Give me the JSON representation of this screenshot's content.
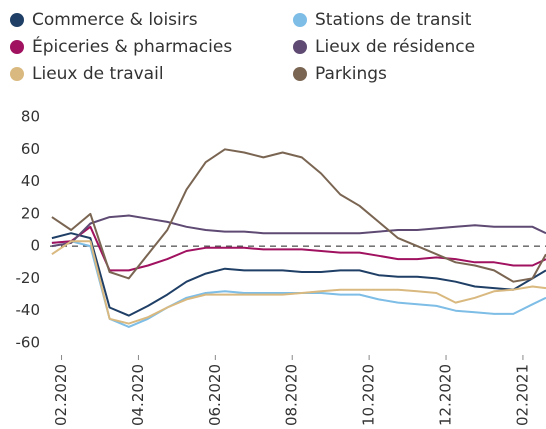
{
  "chart_data": {
    "type": "line",
    "x": [
      1.75,
      2.25,
      2.75,
      3.25,
      3.75,
      4.25,
      4.75,
      5.25,
      5.75,
      6.25,
      6.75,
      7.25,
      7.75,
      8.25,
      8.75,
      9.25,
      9.75,
      10.25,
      10.75,
      11.25,
      11.75,
      12.25,
      12.75,
      13.25,
      13.75,
      14.25,
      14.6
    ],
    "series": [
      {
        "name": "Commerce & loisirs",
        "color": "#1f3f66",
        "values": [
          5,
          8,
          5,
          -38,
          -43,
          -37,
          -30,
          -22,
          -17,
          -14,
          -15,
          -15,
          -15,
          -16,
          -16,
          -15,
          -15,
          -18,
          -19,
          -19,
          -20,
          -22,
          -25,
          -26,
          -27,
          -20,
          -15
        ]
      },
      {
        "name": "Stations de transit",
        "color": "#7dbde6",
        "values": [
          2,
          3,
          0,
          -45,
          -50,
          -45,
          -38,
          -32,
          -29,
          -28,
          -29,
          -29,
          -29,
          -29,
          -29,
          -30,
          -30,
          -33,
          -35,
          -36,
          -37,
          -40,
          -41,
          -42,
          -42,
          -36,
          -32
        ]
      },
      {
        "name": "Épiceries & pharmacies",
        "color": "#a0115f",
        "values": [
          2,
          3,
          12,
          -15,
          -15,
          -12,
          -8,
          -3,
          -1,
          -1,
          -1,
          -2,
          -2,
          -2,
          -3,
          -4,
          -4,
          -6,
          -8,
          -8,
          -7,
          -8,
          -10,
          -10,
          -12,
          -12,
          -8
        ]
      },
      {
        "name": "Lieux de résidence",
        "color": "#5e4a73",
        "values": [
          0,
          2,
          14,
          18,
          19,
          17,
          15,
          12,
          10,
          9,
          9,
          8,
          8,
          8,
          8,
          8,
          8,
          9,
          10,
          10,
          11,
          12,
          13,
          12,
          12,
          12,
          8
        ]
      },
      {
        "name": "Lieux de travail",
        "color": "#d9b97f",
        "values": [
          -5,
          3,
          3,
          -45,
          -48,
          -44,
          -38,
          -33,
          -30,
          -30,
          -30,
          -30,
          -30,
          -29,
          -28,
          -27,
          -27,
          -27,
          -27,
          -28,
          -29,
          -35,
          -32,
          -28,
          -27,
          -25,
          -26
        ]
      },
      {
        "name": "Parkings",
        "color": "#7a6552",
        "values": [
          18,
          10,
          20,
          -16,
          -20,
          -5,
          10,
          35,
          52,
          60,
          58,
          55,
          58,
          55,
          45,
          32,
          25,
          15,
          5,
          0,
          -5,
          -10,
          -12,
          -15,
          -22,
          -20,
          -5
        ]
      }
    ],
    "xlim": [
      1.7,
      14.6
    ],
    "xticks": [
      {
        "value": 2,
        "label": "02.2020"
      },
      {
        "value": 4,
        "label": "04.2020"
      },
      {
        "value": 6,
        "label": "06.2020"
      },
      {
        "value": 8,
        "label": "08.2020"
      },
      {
        "value": 10,
        "label": "10.2020"
      },
      {
        "value": 12,
        "label": "12.2020"
      },
      {
        "value": 14,
        "label": "02.2021"
      }
    ],
    "ylim": [
      -62,
      82
    ],
    "yticks": [
      80,
      60,
      40,
      20,
      0,
      -20,
      -40,
      -60
    ],
    "zero_line_dashed": true,
    "legend": "top"
  }
}
